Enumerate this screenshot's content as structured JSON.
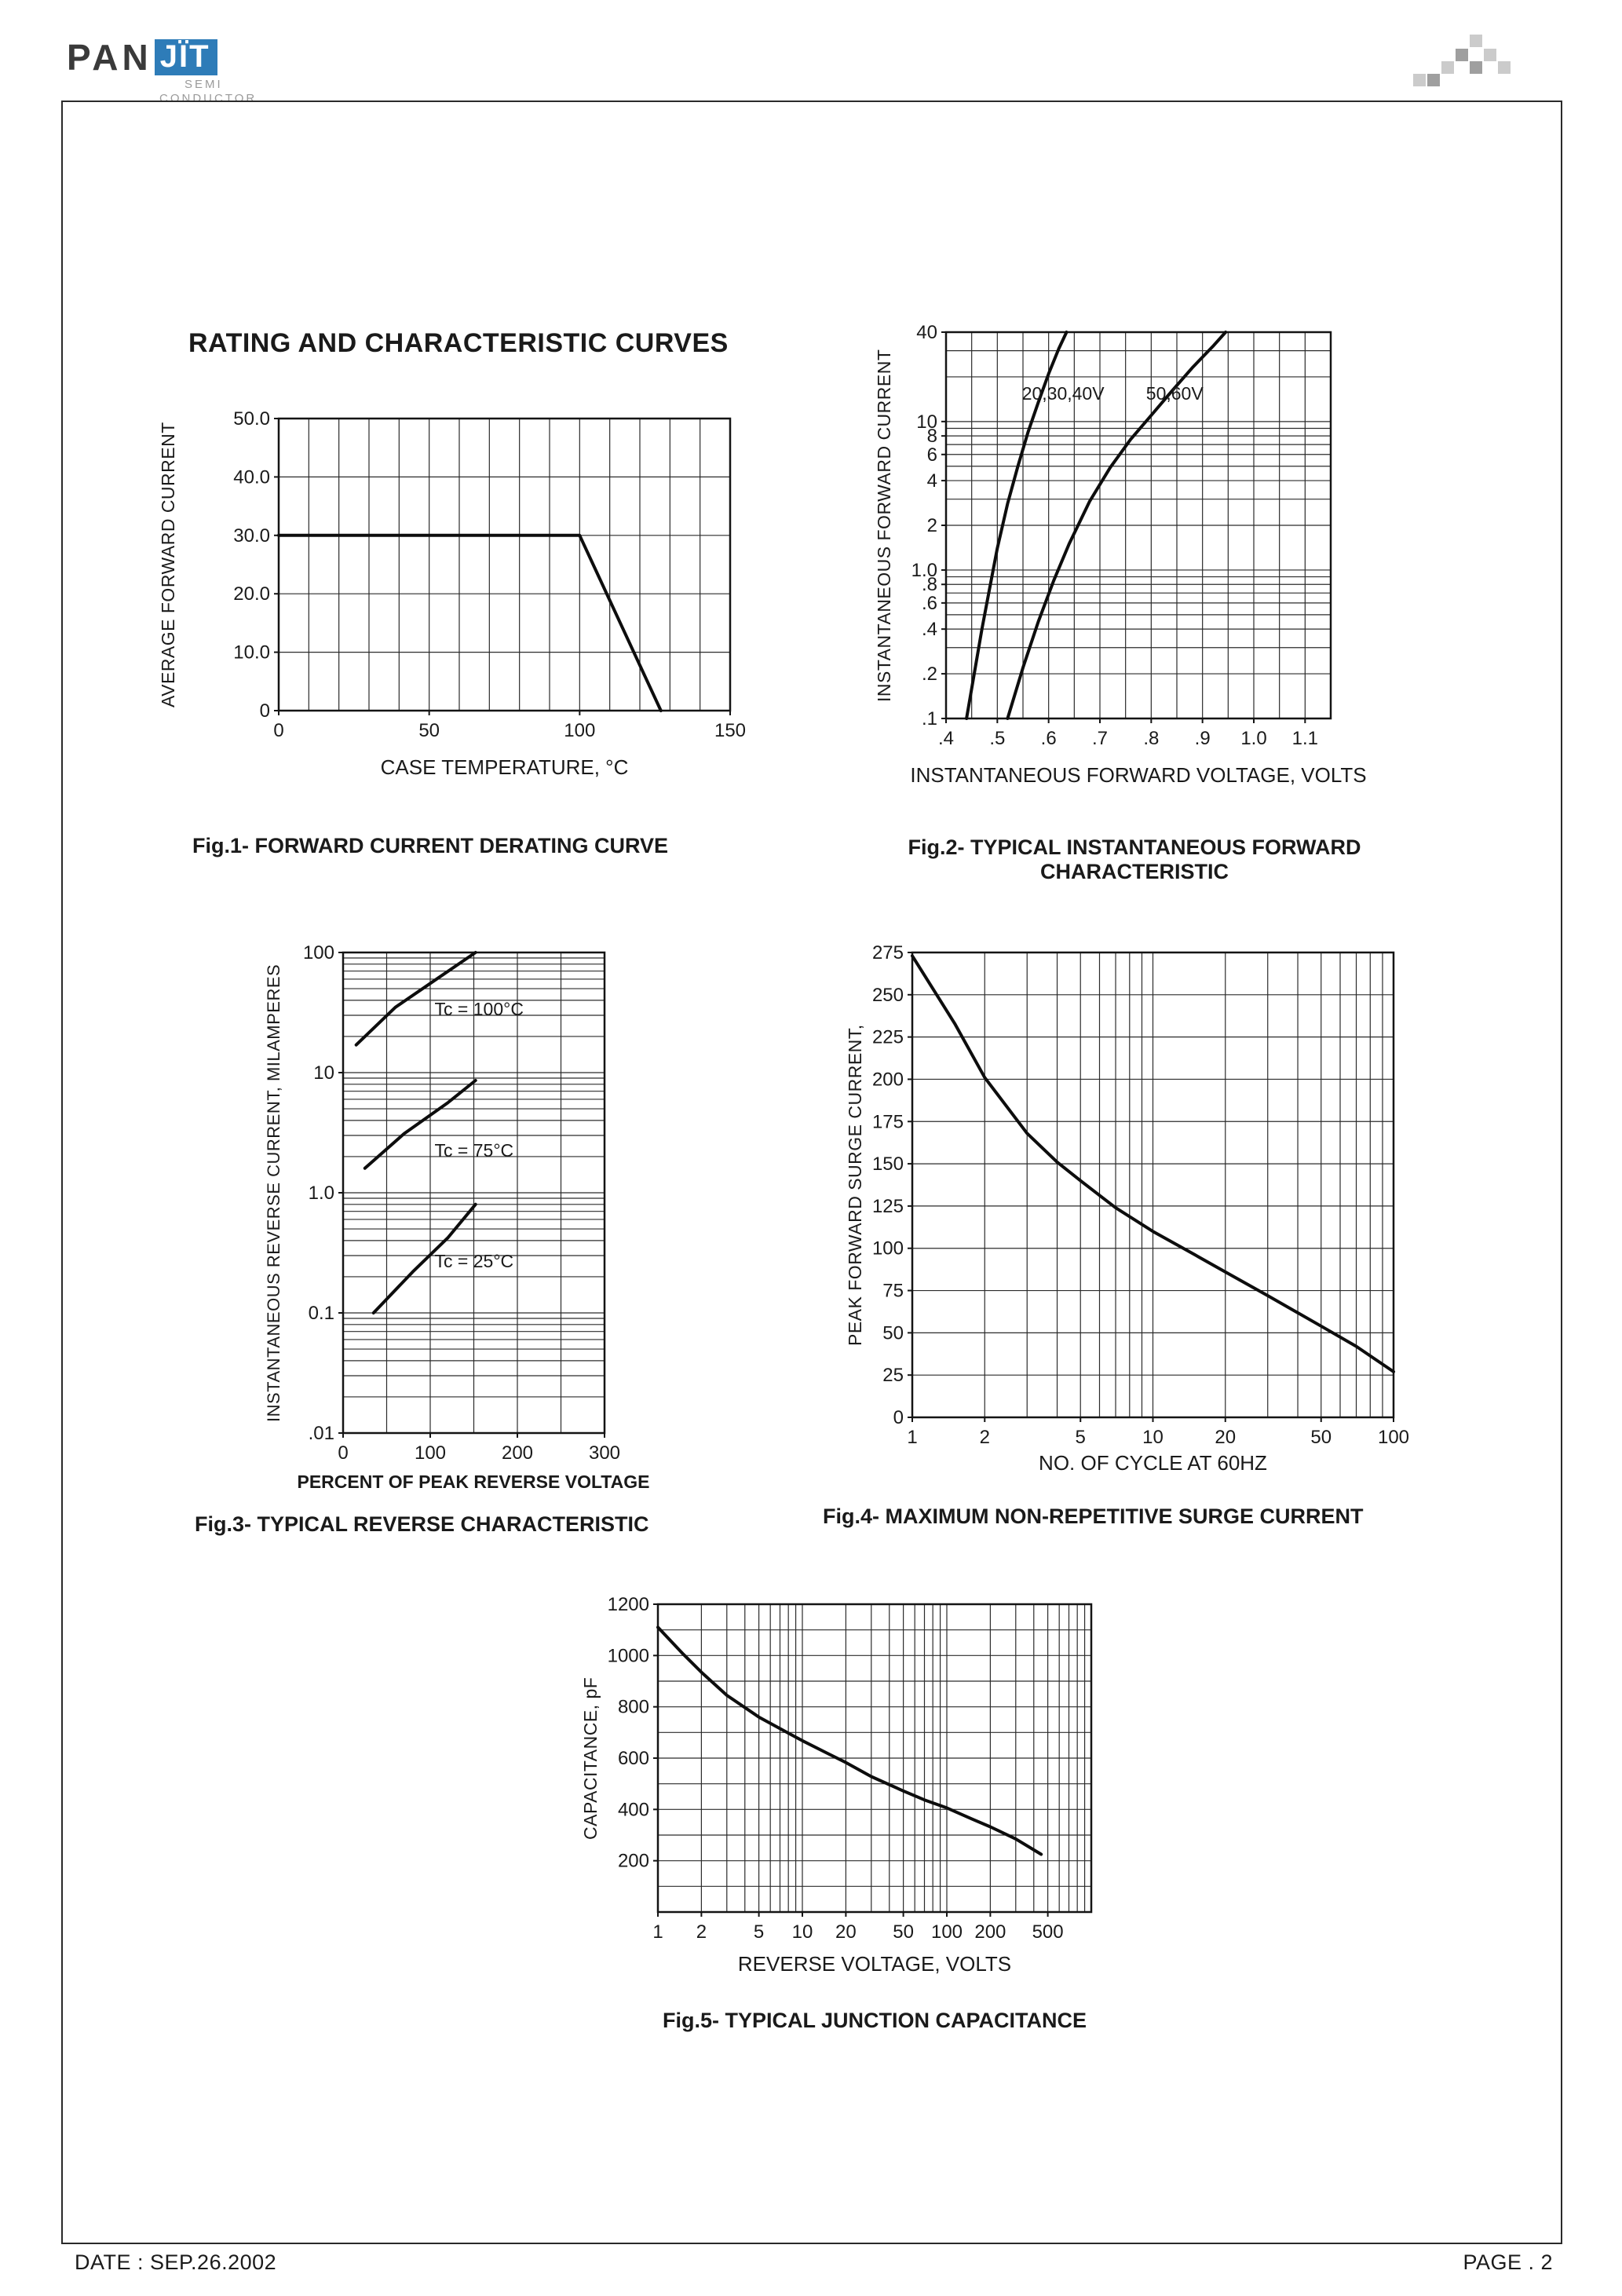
{
  "page": {
    "logo": {
      "pan": "PAN",
      "jit": "JÏT",
      "semi": "SEMI",
      "conductor": "CONDUCTOR"
    },
    "title": "RATING AND CHARACTERISTIC CURVES",
    "footer": {
      "date": "DATE : SEP.26.2002",
      "page": "PAGE . 2"
    }
  },
  "chart_data": [
    {
      "id": "fig1",
      "type": "line",
      "caption": "Fig.1- FORWARD CURRENT DERATING CURVE",
      "ylabel": "AVERAGE FORWARD CURRENT",
      "xlabel": "CASE TEMPERATURE, °C",
      "x": {
        "scale": "linear",
        "min": 0,
        "max": 150,
        "grid_step": 10,
        "ticks": [
          0,
          50,
          100,
          150
        ],
        "tick_labels": [
          "0",
          "50",
          "100",
          "150"
        ]
      },
      "y": {
        "scale": "linear",
        "min": 0,
        "max": 50,
        "grid_step": 10,
        "ticks": [
          0,
          10,
          20,
          30,
          40,
          50
        ],
        "tick_labels": [
          "0",
          "10.0",
          "20.0",
          "30.0",
          "40.0",
          "50.0"
        ]
      },
      "series": [
        {
          "name": "forward-current-derating",
          "points": [
            [
              0,
              30
            ],
            [
              100,
              30
            ],
            [
              127,
              0
            ]
          ]
        }
      ],
      "annotations": []
    },
    {
      "id": "fig2",
      "type": "line",
      "caption": "Fig.2- TYPICAL INSTANTANEOUS FORWARD\nCHARACTERISTIC",
      "ylabel": "INSTANTANEOUS FORWARD CURRENT",
      "xlabel": "INSTANTANEOUS FORWARD VOLTAGE, VOLTS",
      "x": {
        "scale": "linear",
        "min": 0.4,
        "max": 1.15,
        "grid_step": 0.05,
        "ticks": [
          0.4,
          0.5,
          0.6,
          0.7,
          0.8,
          0.9,
          1.0,
          1.1
        ],
        "tick_labels": [
          ".4",
          ".5",
          ".6",
          ".7",
          ".8",
          ".9",
          "1.0",
          "1.1"
        ]
      },
      "y": {
        "scale": "log",
        "min": 0.1,
        "max": 40,
        "ticks": [
          40,
          10,
          8,
          6,
          4,
          2,
          1.0,
          0.8,
          0.6,
          0.4,
          0.2,
          0.1
        ],
        "tick_labels": [
          "40",
          "10",
          "8",
          "6",
          "4",
          "2",
          "1.0",
          ".8",
          ".6",
          ".4",
          ".2",
          ".1"
        ]
      },
      "series": [
        {
          "name": "20,30,40V",
          "points": [
            [
              0.44,
              0.1
            ],
            [
              0.455,
              0.2
            ],
            [
              0.47,
              0.4
            ],
            [
              0.485,
              0.75
            ],
            [
              0.5,
              1.4
            ],
            [
              0.52,
              2.8
            ],
            [
              0.54,
              5.0
            ],
            [
              0.56,
              8.5
            ],
            [
              0.58,
              13.5
            ],
            [
              0.6,
              21
            ],
            [
              0.62,
              31
            ],
            [
              0.635,
              40
            ]
          ]
        },
        {
          "name": "50,60V",
          "points": [
            [
              0.52,
              0.1
            ],
            [
              0.55,
              0.22
            ],
            [
              0.58,
              0.45
            ],
            [
              0.61,
              0.85
            ],
            [
              0.64,
              1.5
            ],
            [
              0.68,
              2.9
            ],
            [
              0.72,
              4.9
            ],
            [
              0.76,
              7.6
            ],
            [
              0.8,
              11
            ],
            [
              0.84,
              16
            ],
            [
              0.88,
              23
            ],
            [
              0.92,
              32
            ],
            [
              0.945,
              40
            ]
          ]
        }
      ],
      "annotations": [
        {
          "text": "20,30,40V",
          "x": 0.548,
          "y": 14,
          "anchor": "start"
        },
        {
          "text": "50,60V",
          "x": 0.79,
          "y": 14,
          "anchor": "start"
        }
      ]
    },
    {
      "id": "fig3",
      "type": "line",
      "caption": "Fig.3- TYPICAL REVERSE CHARACTERISTIC",
      "ylabel": "INSTANTANEOUS REVERSE CURRENT, MILAMPERES",
      "xlabel": "PERCENT OF PEAK REVERSE VOLTAGE",
      "x": {
        "scale": "linear",
        "min": 0,
        "max": 300,
        "grid_step": 50,
        "ticks": [
          0,
          100,
          200,
          300
        ],
        "tick_labels": [
          "0",
          "100",
          "200",
          "300"
        ]
      },
      "y": {
        "scale": "log",
        "min": 0.01,
        "max": 100,
        "ticks": [
          100,
          10,
          1.0,
          0.1,
          0.01
        ],
        "tick_labels": [
          "100",
          "10",
          "1.0",
          "0.1",
          ".01"
        ]
      },
      "series": [
        {
          "name": "Tc-100C",
          "points": [
            [
              15,
              17
            ],
            [
              60,
              35
            ],
            [
              110,
              62
            ],
            [
              152,
              100
            ]
          ]
        },
        {
          "name": "Tc-75C",
          "points": [
            [
              25,
              1.6
            ],
            [
              70,
              3.1
            ],
            [
              120,
              5.6
            ],
            [
              152,
              8.6
            ]
          ]
        },
        {
          "name": "Tc-25C",
          "points": [
            [
              35,
              0.1
            ],
            [
              80,
              0.22
            ],
            [
              120,
              0.42
            ],
            [
              152,
              0.8
            ]
          ]
        }
      ],
      "annotations": [
        {
          "text": "Tc = 100°C",
          "x": 105,
          "y": 30,
          "anchor": "start"
        },
        {
          "text": "Tc = 75°C",
          "x": 105,
          "y": 2.0,
          "anchor": "start"
        },
        {
          "text": "Tc = 25°C",
          "x": 105,
          "y": 0.24,
          "anchor": "start"
        }
      ]
    },
    {
      "id": "fig4",
      "type": "line",
      "caption": "Fig.4- MAXIMUM NON-REPETITIVE SURGE CURRENT",
      "ylabel": "PEAK FORWARD SURGE CURRENT,",
      "xlabel": "NO. OF CYCLE AT 60HZ",
      "x": {
        "scale": "log",
        "min": 1,
        "max": 100,
        "ticks": [
          1,
          2,
          5,
          10,
          20,
          50,
          100
        ],
        "tick_labels": [
          "1",
          "2",
          "5",
          "10",
          "20",
          "50",
          "100"
        ]
      },
      "y": {
        "scale": "linear",
        "min": 0,
        "max": 275,
        "grid_step": 25,
        "ticks": [
          0,
          25,
          50,
          75,
          100,
          125,
          150,
          175,
          200,
          225,
          250,
          275
        ],
        "tick_labels": [
          "0",
          "25",
          "50",
          "75",
          "100",
          "125",
          "150",
          "175",
          "200",
          "225",
          "250",
          "275"
        ]
      },
      "series": [
        {
          "name": "surge-current",
          "points": [
            [
              1,
              273
            ],
            [
              1.5,
              233
            ],
            [
              2,
              201
            ],
            [
              3,
              168
            ],
            [
              4,
              151
            ],
            [
              5,
              140
            ],
            [
              7,
              124
            ],
            [
              10,
              110
            ],
            [
              15,
              96
            ],
            [
              20,
              86
            ],
            [
              30,
              72
            ],
            [
              50,
              54
            ],
            [
              70,
              42
            ],
            [
              100,
              27
            ]
          ]
        }
      ],
      "annotations": []
    },
    {
      "id": "fig5",
      "type": "line",
      "caption": "Fig.5- TYPICAL JUNCTION CAPACITANCE",
      "ylabel": "CAPACITANCE, pF",
      "xlabel": "REVERSE VOLTAGE, VOLTS",
      "x": {
        "scale": "log",
        "min": 1,
        "max": 1000,
        "ticks": [
          1,
          2,
          5,
          10,
          20,
          50,
          100,
          200,
          500
        ],
        "tick_labels": [
          "1",
          "2",
          "5",
          "10",
          "20",
          "50",
          "100",
          "200",
          "500"
        ]
      },
      "y": {
        "scale": "linear",
        "min": 0,
        "max": 1200,
        "grid_step": 100,
        "ticks": [
          200,
          400,
          600,
          800,
          1000,
          1200
        ],
        "tick_labels": [
          "200",
          "400",
          "600",
          "800",
          "1000",
          "1200"
        ]
      },
      "series": [
        {
          "name": "junction-capacitance",
          "points": [
            [
              1,
              1110
            ],
            [
              1.5,
              1005
            ],
            [
              2,
              935
            ],
            [
              3,
              845
            ],
            [
              5,
              760
            ],
            [
              7,
              715
            ],
            [
              10,
              668
            ],
            [
              15,
              618
            ],
            [
              20,
              583
            ],
            [
              30,
              528
            ],
            [
              50,
              472
            ],
            [
              70,
              437
            ],
            [
              100,
              406
            ],
            [
              150,
              362
            ],
            [
              200,
              332
            ],
            [
              300,
              285
            ],
            [
              450,
              225
            ]
          ]
        }
      ],
      "annotations": []
    }
  ]
}
